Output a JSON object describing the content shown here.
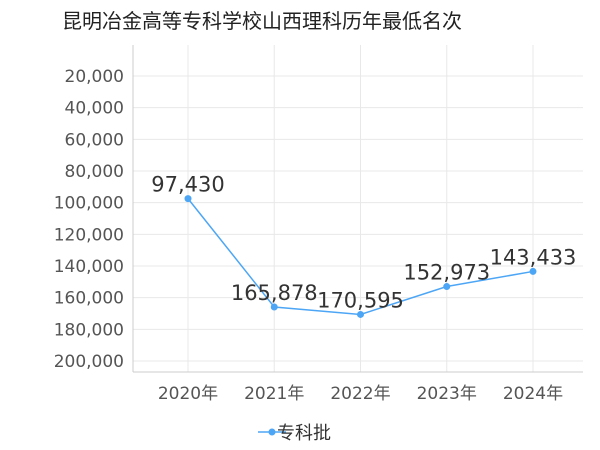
{
  "title": "昆明冶金高等专科学校山西理科历年最低名次",
  "chart_data": {
    "type": "line",
    "title": "昆明冶金高等专科学校山西理科历年最低名次",
    "categories": [
      "2020年",
      "2021年",
      "2022年",
      "2023年",
      "2024年"
    ],
    "series": [
      {
        "name": "专科批",
        "values": [
          97430,
          165878,
          170595,
          152973,
          143433
        ]
      }
    ],
    "data_labels": [
      "97,430",
      "165,878",
      "170,595",
      "152,973",
      "143,433"
    ],
    "y_ticks": [
      20000,
      40000,
      60000,
      80000,
      100000,
      120000,
      140000,
      160000,
      180000,
      200000
    ],
    "y_tick_labels": [
      "20,000",
      "40,000",
      "60,000",
      "80,000",
      "100,000",
      "120,000",
      "140,000",
      "160,000",
      "180,000",
      "200,000"
    ],
    "ylim": [
      200000,
      20000
    ],
    "y_inverted": true,
    "xlabel": "",
    "ylabel": "",
    "grid": true,
    "legend_position": "bottom",
    "series_color": "#4da6f5",
    "grid_color": "#e8e8e8"
  }
}
